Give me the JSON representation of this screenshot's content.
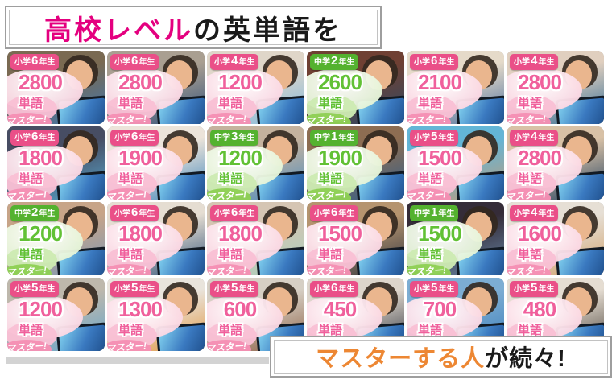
{
  "titles": {
    "top": {
      "highlight": "高校レベル",
      "rest": "の英単語を"
    },
    "bottom": {
      "highlight": "マスターする人",
      "rest": "が続々!"
    }
  },
  "labels": {
    "unit": "単語",
    "master": "マスター!"
  },
  "colors": {
    "magenta": "#e4007f",
    "orange": "#ed8733",
    "pink_badge": "#ea4f88",
    "pink_text": "#f0609c",
    "green_badge": "#54b22f",
    "green_text": "#62c135"
  },
  "grid": {
    "rows": 4,
    "cols": 6,
    "cells": [
      {
        "school": "小学",
        "year": "6",
        "suffix": "年生",
        "count": "2800",
        "theme": "pink",
        "photo": {
          "top": "#7a6a52",
          "bottom": "#3e76b0"
        }
      },
      {
        "school": "小学",
        "year": "6",
        "suffix": "年生",
        "count": "2800",
        "theme": "pink",
        "photo": {
          "top": "#a99f91",
          "bottom": "#31507a"
        }
      },
      {
        "school": "小学",
        "year": "4",
        "suffix": "年生",
        "count": "1200",
        "theme": "pink",
        "photo": {
          "top": "#dfd6c9",
          "bottom": "#7fb9de"
        }
      },
      {
        "school": "中学",
        "year": "2",
        "suffix": "年生",
        "count": "2600",
        "theme": "green",
        "photo": {
          "top": "#6f4033",
          "bottom": "#2c4a66"
        }
      },
      {
        "school": "小学",
        "year": "6",
        "suffix": "年生",
        "count": "2100",
        "theme": "pink",
        "photo": {
          "top": "#e5dac9",
          "bottom": "#4a6e9e"
        }
      },
      {
        "school": "小学",
        "year": "4",
        "suffix": "年生",
        "count": "2800",
        "theme": "pink",
        "photo": {
          "top": "#e0cfbf",
          "bottom": "#2f6b95"
        }
      },
      {
        "school": "小学",
        "year": "6",
        "suffix": "年生",
        "count": "1800",
        "theme": "pink",
        "photo": {
          "top": "#474d63",
          "bottom": "#58a8cf"
        }
      },
      {
        "school": "小学",
        "year": "6",
        "suffix": "年生",
        "count": "1900",
        "theme": "pink",
        "photo": {
          "top": "#ece4da",
          "bottom": "#4187bd"
        }
      },
      {
        "school": "中学",
        "year": "3",
        "suffix": "年生",
        "count": "1200",
        "theme": "green",
        "photo": {
          "top": "#c4b29e",
          "bottom": "#4a8cc0"
        }
      },
      {
        "school": "中学",
        "year": "1",
        "suffix": "年生",
        "count": "1900",
        "theme": "green",
        "photo": {
          "top": "#8d6d52",
          "bottom": "#2f5f8c"
        }
      },
      {
        "school": "小学",
        "year": "5",
        "suffix": "年生",
        "count": "1500",
        "theme": "pink",
        "photo": {
          "top": "#63b5d6",
          "bottom": "#c29b78"
        }
      },
      {
        "school": "小学",
        "year": "4",
        "suffix": "年生",
        "count": "2800",
        "theme": "pink",
        "photo": {
          "top": "#d8c1a6",
          "bottom": "#22405f"
        }
      },
      {
        "school": "中学",
        "year": "2",
        "suffix": "年生",
        "count": "1200",
        "theme": "green",
        "photo": {
          "top": "#c7a488",
          "bottom": "#7a98b8"
        }
      },
      {
        "school": "小学",
        "year": "6",
        "suffix": "年生",
        "count": "1800",
        "theme": "pink",
        "photo": {
          "top": "#e5ddd2",
          "bottom": "#2e5076"
        }
      },
      {
        "school": "小学",
        "year": "6",
        "suffix": "年生",
        "count": "1800",
        "theme": "pink",
        "photo": {
          "top": "#d5c5b3",
          "bottom": "#a8d0bd"
        }
      },
      {
        "school": "小学",
        "year": "6",
        "suffix": "年生",
        "count": "1500",
        "theme": "pink",
        "photo": {
          "top": "#b5946f",
          "bottom": "#30353f"
        }
      },
      {
        "school": "中学",
        "year": "1",
        "suffix": "年生",
        "count": "1500",
        "theme": "green",
        "photo": {
          "top": "#352c38",
          "bottom": "#6888a8"
        }
      },
      {
        "school": "小学",
        "year": "4",
        "suffix": "年生",
        "count": "1600",
        "theme": "pink",
        "photo": {
          "top": "#e6dfd5",
          "bottom": "#d0a06a"
        }
      },
      {
        "school": "小学",
        "year": "5",
        "suffix": "年生",
        "count": "1200",
        "theme": "pink",
        "photo": {
          "top": "#beb8ac",
          "bottom": "#63a5cc"
        }
      },
      {
        "school": "小学",
        "year": "5",
        "suffix": "年生",
        "count": "1300",
        "theme": "pink",
        "photo": {
          "top": "#e9e4dc",
          "bottom": "#e0953e"
        }
      },
      {
        "school": "小学",
        "year": "5",
        "suffix": "年生",
        "count": "600",
        "theme": "pink",
        "photo": {
          "top": "#d6cfc4",
          "bottom": "#8a5c40"
        }
      },
      {
        "school": "小学",
        "year": "6",
        "suffix": "年生",
        "count": "450",
        "theme": "pink",
        "photo": {
          "top": "#ddd5cb",
          "bottom": "#2e323c"
        }
      },
      {
        "school": "小学",
        "year": "5",
        "suffix": "年生",
        "count": "700",
        "theme": "pink",
        "photo": {
          "top": "#7cadd3",
          "bottom": "#3f7fba"
        }
      },
      {
        "school": "小学",
        "year": "5",
        "suffix": "年生",
        "count": "480",
        "theme": "pink",
        "photo": {
          "top": "#e5ddd2",
          "bottom": "#4d443c"
        }
      }
    ]
  }
}
